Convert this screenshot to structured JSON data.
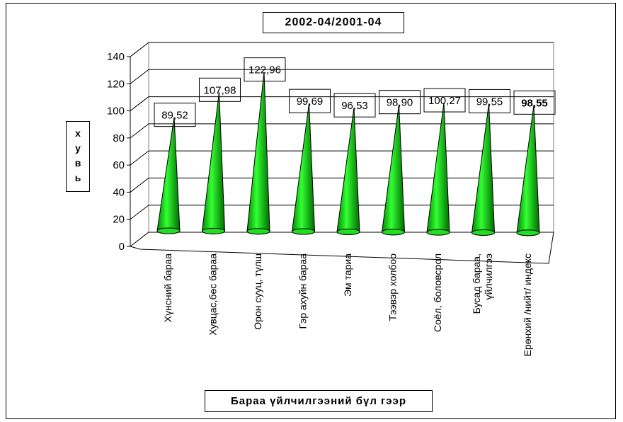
{
  "chart_data": {
    "type": "bar",
    "title": "2002-04/2001-04",
    "ylabel": "хувь",
    "xlabel": "Бараа үйлчилгээний бүл гээр",
    "ylim": [
      0,
      140
    ],
    "yticks": [
      "0",
      "20",
      "40",
      "60",
      "80",
      "100",
      "120",
      "140"
    ],
    "categories": [
      "Хүнсний бараа",
      "Хувцас,бөс бараа",
      "Орон сууц, түлш",
      "Гэр ахуйн бараа",
      "Эм тариа",
      "Тээвэр холбоо",
      "Соёл, боловсрол",
      "Бусад бараа, үйлчилгээ",
      "Ерөнхий /нийт/ индекс"
    ],
    "category_lines": [
      [
        "Хүнсний бараа"
      ],
      [
        "Хувцас,бөс бараа"
      ],
      [
        "Орон сууц, түлш"
      ],
      [
        "Гэр ахуйн бараа"
      ],
      [
        "Эм тариа"
      ],
      [
        "Тээвэр холбоо"
      ],
      [
        "Соёл, боловсрол"
      ],
      [
        "Бусад бараа,",
        "үйлчилгээ"
      ],
      [
        "Ерөнхий /нийт/ индекс"
      ]
    ],
    "values": [
      89.52,
      107.98,
      122.96,
      99.69,
      96.53,
      98.9,
      100.27,
      99.55,
      98.55
    ],
    "value_labels": [
      "89,52",
      "107,98",
      "122,96",
      "99,69",
      "96,53",
      "98,90",
      "100,27",
      "99,55",
      "98,55"
    ],
    "bold_value_index": 8,
    "shape": "cone",
    "bar_color": "#00ff00",
    "grid": true,
    "legend": "none"
  }
}
